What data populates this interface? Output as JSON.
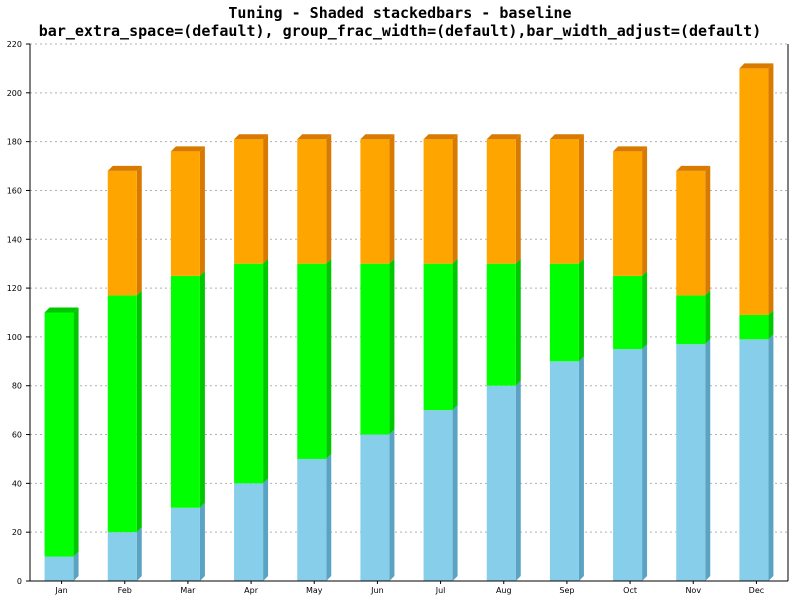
{
  "chart_data": {
    "type": "bar",
    "stacked": true,
    "shaded_3d": true,
    "title": "Tuning - Shaded stackedbars - baseline",
    "subtitle": "bar_extra_space=(default), group_frac_width=(default),bar_width_adjust=(default)",
    "xlabel": "",
    "ylabel": "",
    "categories": [
      "Jan",
      "Feb",
      "Mar",
      "Apr",
      "May",
      "Jun",
      "Jul",
      "Aug",
      "Sep",
      "Oct",
      "Nov",
      "Dec"
    ],
    "series": [
      {
        "color": "#87CEEB",
        "shade": "#5BA3C3",
        "values": [
          10,
          20,
          30,
          40,
          50,
          60,
          70,
          80,
          90,
          95,
          97,
          99
        ]
      },
      {
        "color": "#00FF00",
        "shade": "#00C800",
        "values": [
          100,
          97,
          95,
          90,
          80,
          70,
          60,
          50,
          40,
          30,
          20,
          10
        ]
      },
      {
        "color": "#FFA500",
        "shade": "#D87A00",
        "values": [
          0,
          51,
          51,
          51,
          51,
          51,
          51,
          51,
          51,
          51,
          51,
          101
        ]
      }
    ],
    "ylim": [
      0,
      220
    ],
    "y_ticks": [
      0,
      20,
      40,
      60,
      80,
      100,
      120,
      140,
      160,
      180,
      200,
      220
    ],
    "grid": true,
    "legend": "none"
  }
}
